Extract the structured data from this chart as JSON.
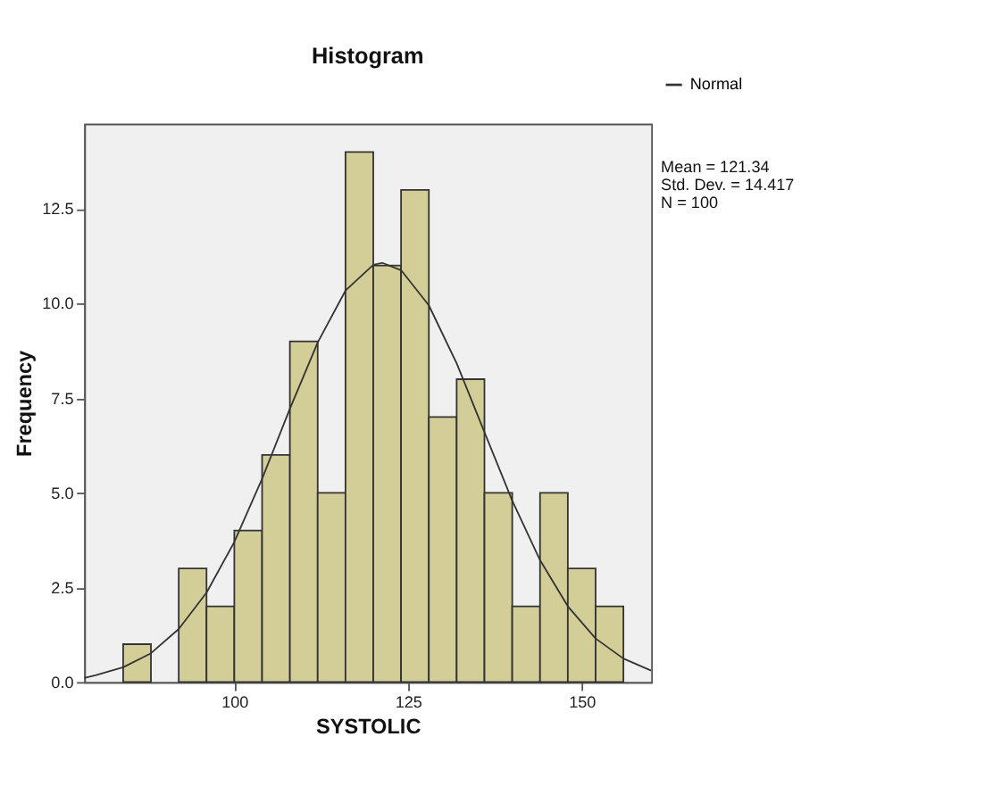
{
  "chart_data": {
    "type": "histogram",
    "title": "Histogram",
    "xlabel": "SYSTOLIC",
    "ylabel": "Frequency",
    "bins": [
      84,
      88,
      92,
      96,
      100,
      104,
      108,
      112,
      116,
      120,
      124,
      128,
      132,
      136,
      140,
      144,
      148,
      152,
      156
    ],
    "values": [
      1,
      0,
      3,
      2,
      4,
      6,
      9,
      5,
      14,
      11,
      13,
      7,
      8,
      5,
      2,
      5,
      3,
      2
    ],
    "color": "#d3ce97",
    "series": [
      {
        "type": "line",
        "name": "Normal",
        "color": "#333333",
        "x": [
          78.4,
          80,
          84,
          88,
          92,
          96,
          100,
          104,
          108,
          112,
          116,
          120,
          121.34,
          124,
          128,
          132,
          136,
          140,
          144,
          148,
          152,
          156,
          160
        ],
        "values": [
          0.11,
          0.18,
          0.39,
          0.76,
          1.4,
          2.36,
          3.7,
          5.37,
          7.22,
          8.97,
          10.34,
          11.02,
          11.07,
          10.88,
          9.95,
          8.42,
          6.6,
          4.79,
          3.22,
          2.0,
          1.15,
          0.62,
          0.3
        ]
      }
    ],
    "xlim": [
      78.4,
      160
    ],
    "ylim": [
      0,
      14.75
    ],
    "xticks": [
      100,
      125,
      150
    ],
    "yticks": [
      {
        "value": 0,
        "label": "0.0"
      },
      {
        "value": 2.5,
        "label": "2.5"
      },
      {
        "value": 5,
        "label": "5.0"
      },
      {
        "value": 7.5,
        "label": "7.5"
      },
      {
        "value": 10,
        "label": "10.0"
      },
      {
        "value": 12.5,
        "label": "12.5"
      }
    ],
    "annotations": [
      "Mean = 121.34",
      "Std. Dev. = 14.417",
      "N = 100"
    ],
    "legend": "top right",
    "grid": false
  }
}
